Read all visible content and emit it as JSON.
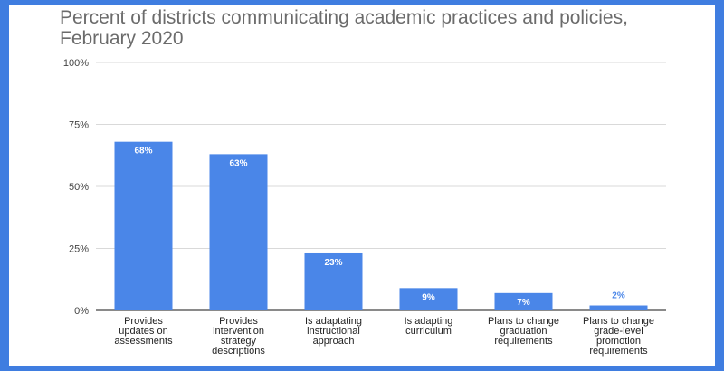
{
  "chart_data": {
    "type": "bar",
    "title": "Percent of districts communicating academic practices and policies,\nFebruary 2020",
    "xlabel": "",
    "ylabel": "",
    "ylim": [
      0,
      100
    ],
    "yticks": [
      0,
      25,
      50,
      75,
      100
    ],
    "ytick_labels": [
      "0%",
      "25%",
      "50%",
      "75%",
      "100%"
    ],
    "grid": true,
    "legend": "none",
    "bar_color": "#4a86e8",
    "categories": [
      [
        "Provides",
        "updates on",
        "assessments"
      ],
      [
        "Provides",
        "intervention",
        "strategy",
        "descriptions"
      ],
      [
        "Is adaptating",
        "instructional",
        "approach"
      ],
      [
        "Is adapting",
        "curriculum"
      ],
      [
        "Plans to change",
        "graduation",
        "requirements"
      ],
      [
        "Plans to change",
        "grade-level",
        "promotion",
        "requirements"
      ]
    ],
    "values": [
      68,
      63,
      23,
      9,
      7,
      2
    ],
    "value_labels": [
      "68%",
      "63%",
      "23%",
      "9%",
      "7%",
      "2%"
    ]
  }
}
